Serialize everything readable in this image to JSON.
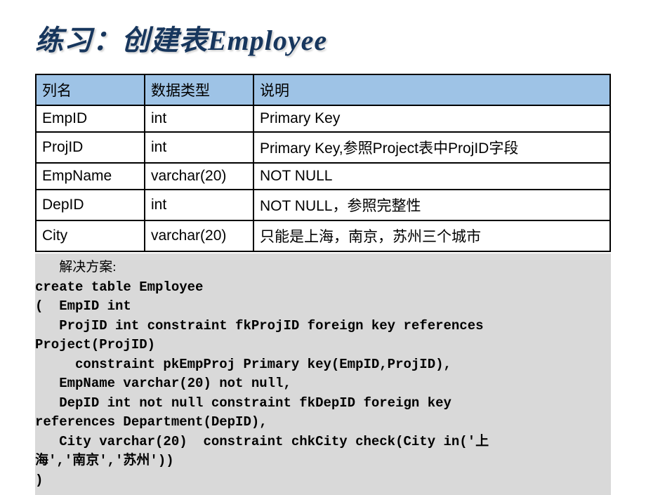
{
  "slide": {
    "title": "练习：创建表Employee",
    "table": {
      "header_bg": "#9ec3e6",
      "border_color": "#000000",
      "columns": [
        "列名",
        "数据类型",
        "说明"
      ],
      "rows": [
        [
          "EmpID",
          "int",
          "Primary Key"
        ],
        [
          "ProjID",
          "int",
          "Primary Key,参照Project表中ProjID字段"
        ],
        [
          "EmpName",
          "varchar(20)",
          "NOT NULL"
        ],
        [
          "DepID",
          "int",
          "NOT NULL，参照完整性"
        ],
        [
          "City",
          "varchar(20)",
          "只能是上海，南京，苏州三个城市"
        ]
      ]
    },
    "code": {
      "label": "解决方案:",
      "lines": [
        "create table Employee",
        "(  EmpID int",
        "   ProjID int constraint fkProjID foreign key references",
        "Project(ProjID)",
        "     constraint pkEmpProj Primary key(EmpID,ProjID),",
        "   EmpName varchar(20) not null,",
        "   DepID int not null constraint fkDepID foreign key",
        "references Department(DepID),",
        "   City varchar(20)  constraint chkCity check(City in('上",
        "海','南京','苏州'))",
        ")"
      ],
      "background_color": "#d9d9d9",
      "font_family": "Courier New",
      "font_size": 19
    }
  },
  "colors": {
    "title_color": "#17365d",
    "slide_background": "#ffffff"
  }
}
